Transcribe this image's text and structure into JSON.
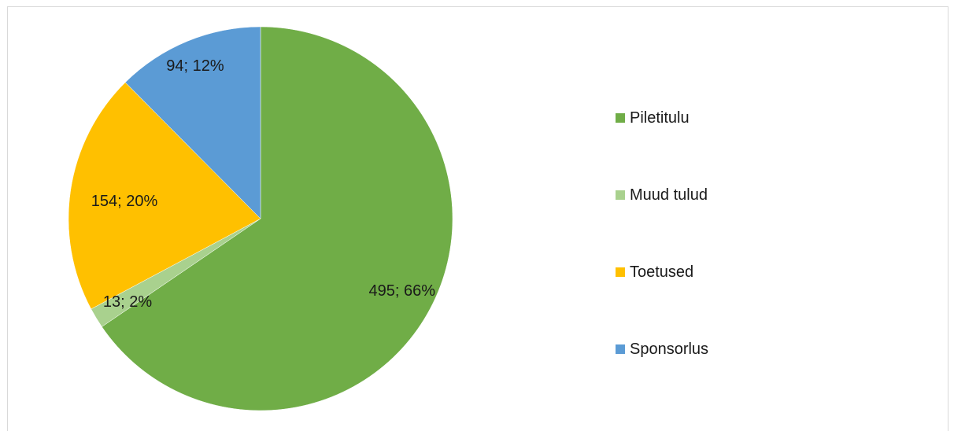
{
  "chart_data": {
    "type": "pie",
    "title": "",
    "categories": [
      "Piletitulu",
      "Muud tulud",
      "Toetused",
      "Sponsorlus"
    ],
    "values": [
      495,
      13,
      154,
      94
    ],
    "percent_labels": [
      "66%",
      "2%",
      "20%",
      "12%"
    ],
    "data_labels": [
      "495; 66%",
      "13; 2%",
      "154; 20%",
      "94; 12%"
    ],
    "colors": [
      "#70ad47",
      "#a9d18e",
      "#ffc000",
      "#5b9bd5"
    ],
    "legend_position": "right"
  }
}
